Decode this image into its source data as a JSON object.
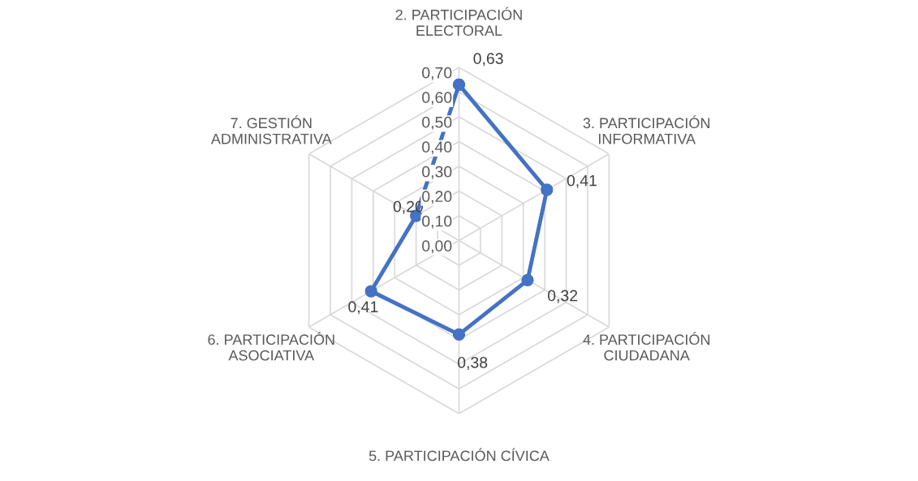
{
  "chart_data": {
    "type": "radar",
    "categories": [
      "2. PARTICIPACIÓN\nELECTORAL",
      "3. PARTICIPACIÓN\nINFORMATIVA",
      "4. PARTICIPACIÓN\nCIUDADANA",
      "5. PARTICIPACIÓN CÍVICA",
      "6. PARTICIPACIÓN\nASOCIATIVA",
      "7. GESTIÓN\nADMINISTRATIVA"
    ],
    "series": [
      {
        "color": "#4472c4",
        "values": [
          0.63,
          0.41,
          0.32,
          0.38,
          0.41,
          0.2
        ],
        "value_labels": [
          "0,63",
          "0,41",
          "0,32",
          "0,38",
          "0,41",
          "0,20"
        ]
      }
    ],
    "ylim": [
      0,
      0.7
    ],
    "yticks": [
      {
        "value": 0,
        "label": "0,00"
      },
      {
        "value": 0.1,
        "label": "0,10"
      },
      {
        "value": 0.2,
        "label": "0,20"
      },
      {
        "value": 0.3,
        "label": "0,30"
      },
      {
        "value": 0.4,
        "label": "0,40"
      },
      {
        "value": 0.5,
        "label": "0,50"
      },
      {
        "value": 0.6,
        "label": "0,60"
      },
      {
        "value": 0.7,
        "label": "0,70"
      }
    ],
    "grid": true,
    "marker": "circle",
    "line_style": "solid",
    "legend": false
  }
}
